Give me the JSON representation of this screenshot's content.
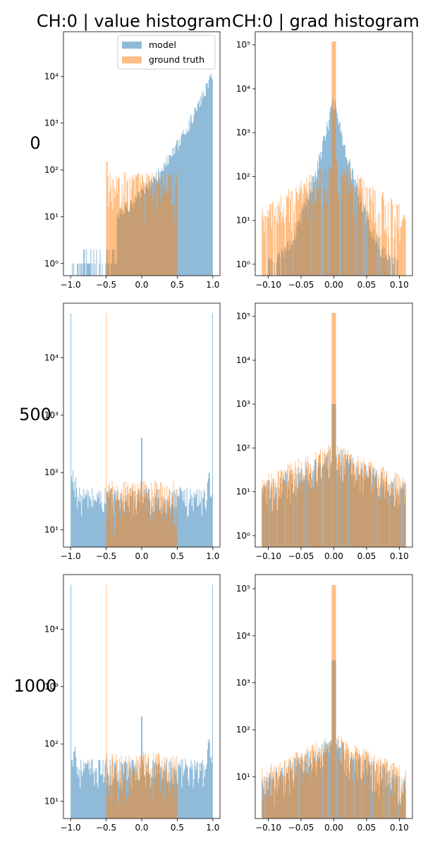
{
  "figure": {
    "col_titles": [
      "CH:0 | value histogram",
      "CH:0 | grad histogram"
    ],
    "row_labels": [
      "0",
      "500",
      "1000"
    ]
  },
  "colors": {
    "model": "#1f77b4",
    "ground_truth": "#ff7f0e",
    "overlap": "#c39568",
    "model_alpha": 0.5,
    "gt_alpha": 0.5
  },
  "legend": {
    "entries": [
      "model",
      "ground truth"
    ],
    "placement": "upper-right"
  },
  "chart_data": [
    {
      "type": "histogram",
      "row": "0",
      "column": "value",
      "xticks": [
        -1.0,
        -0.5,
        0.0,
        0.5,
        1.0
      ],
      "xtick_labels": [
        "−1.0",
        "−0.5",
        "0.0",
        "0.5",
        "1.0"
      ],
      "xlim": [
        -1.1,
        1.1
      ],
      "yscale": "log",
      "ylim": [
        0.55,
        90000
      ],
      "yticks": [
        1,
        10,
        100,
        1000,
        10000
      ],
      "ytick_labels": [
        "10⁰",
        "10¹",
        "10²",
        "10³",
        "10⁴"
      ],
      "series": [
        {
          "name": "model",
          "range": [
            -1.0,
            1.0
          ],
          "ends": [
            6,
            12000
          ],
          "baseline": 1
        },
        {
          "name": "ground truth",
          "range": [
            -0.5,
            0.5
          ],
          "plateau": 25,
          "spike": 150
        }
      ]
    },
    {
      "type": "histogram",
      "row": "0",
      "column": "grad",
      "xticks": [
        -0.1,
        -0.05,
        0.0,
        0.05,
        0.1
      ],
      "xtick_labels": [
        "−0.10",
        "−0.05",
        "0.00",
        "0.05",
        "0.10"
      ],
      "xlim": [
        -0.12,
        0.12
      ],
      "yscale": "log",
      "ylim": [
        0.55,
        200000
      ],
      "yticks": [
        1,
        10,
        100,
        1000,
        10000,
        100000
      ],
      "ytick_labels": [
        "10⁰",
        "10¹",
        "10²",
        "10³",
        "10⁴",
        "10⁵"
      ],
      "series": [
        {
          "name": "model",
          "range": [
            -0.1,
            0.1
          ],
          "peak": 6000,
          "edge": 1
        },
        {
          "name": "ground truth",
          "range": [
            -0.11,
            0.11
          ],
          "peak": 120000,
          "plateau": 150
        }
      ]
    },
    {
      "type": "histogram",
      "row": "500",
      "column": "value",
      "xticks": [
        -1.0,
        -0.5,
        0.0,
        0.5,
        1.0
      ],
      "xtick_labels": [
        "−1.0",
        "−0.5",
        "0.0",
        "0.5",
        "1.0"
      ],
      "xlim": [
        -1.1,
        1.1
      ],
      "yscale": "log",
      "ylim": [
        5,
        90000
      ],
      "yticks": [
        10,
        100,
        1000,
        10000
      ],
      "ytick_labels": [
        "10¹",
        "10²",
        "10³",
        "10⁴"
      ],
      "series": [
        {
          "name": "model",
          "range": [
            -1.0,
            1.0
          ],
          "level": 30,
          "edge_spike": 60000,
          "center_spike": 400
        },
        {
          "name": "ground truth",
          "range": [
            -0.5,
            0.5
          ],
          "plateau": 25,
          "spike": 60000
        }
      ]
    },
    {
      "type": "histogram",
      "row": "500",
      "column": "grad",
      "xticks": [
        -0.1,
        -0.05,
        0.0,
        0.05,
        0.1
      ],
      "xtick_labels": [
        "−0.10",
        "−0.05",
        "0.00",
        "0.05",
        "0.10"
      ],
      "xlim": [
        -0.12,
        0.12
      ],
      "yscale": "log",
      "ylim": [
        0.55,
        200000
      ],
      "yticks": [
        1,
        10,
        100,
        1000,
        10000,
        100000
      ],
      "ytick_labels": [
        "10⁰",
        "10¹",
        "10²",
        "10³",
        "10⁴",
        "10⁵"
      ],
      "series": [
        {
          "name": "model",
          "range": [
            -0.11,
            0.11
          ],
          "peak": 1000,
          "plateau": 60
        },
        {
          "name": "ground truth",
          "range": [
            -0.11,
            0.11
          ],
          "peak": 120000,
          "plateau": 60
        }
      ]
    },
    {
      "type": "histogram",
      "row": "1000",
      "column": "value",
      "xticks": [
        -1.0,
        -0.5,
        0.0,
        0.5,
        1.0
      ],
      "xtick_labels": [
        "−1.0",
        "−0.5",
        "0.0",
        "0.5",
        "1.0"
      ],
      "xlim": [
        -1.1,
        1.1
      ],
      "yscale": "log",
      "ylim": [
        5,
        90000
      ],
      "yticks": [
        10,
        100,
        1000,
        10000
      ],
      "ytick_labels": [
        "10¹",
        "10²",
        "10³",
        "10⁴"
      ],
      "series": [
        {
          "name": "model",
          "range": [
            -1.0,
            1.0
          ],
          "level": 30,
          "edge_spike": 60000,
          "center_spike": 300
        },
        {
          "name": "ground truth",
          "range": [
            -0.5,
            0.5
          ],
          "plateau": 25,
          "spike": 60000
        }
      ]
    },
    {
      "type": "histogram",
      "row": "1000",
      "column": "grad",
      "xticks": [
        -0.1,
        -0.05,
        0.0,
        0.05,
        0.1
      ],
      "xtick_labels": [
        "−0.10",
        "−0.05",
        "0.00",
        "0.05",
        "0.10"
      ],
      "xlim": [
        -0.12,
        0.12
      ],
      "yscale": "log",
      "ylim": [
        1.3,
        200000
      ],
      "yticks": [
        10,
        100,
        1000,
        10000,
        100000
      ],
      "ytick_labels": [
        "10¹",
        "10²",
        "10³",
        "10⁴",
        "10⁵"
      ],
      "series": [
        {
          "name": "model",
          "range": [
            -0.11,
            0.11
          ],
          "peak": 3000,
          "plateau": 40
        },
        {
          "name": "ground truth",
          "range": [
            -0.11,
            0.11
          ],
          "peak": 120000,
          "plateau": 40
        }
      ]
    }
  ]
}
